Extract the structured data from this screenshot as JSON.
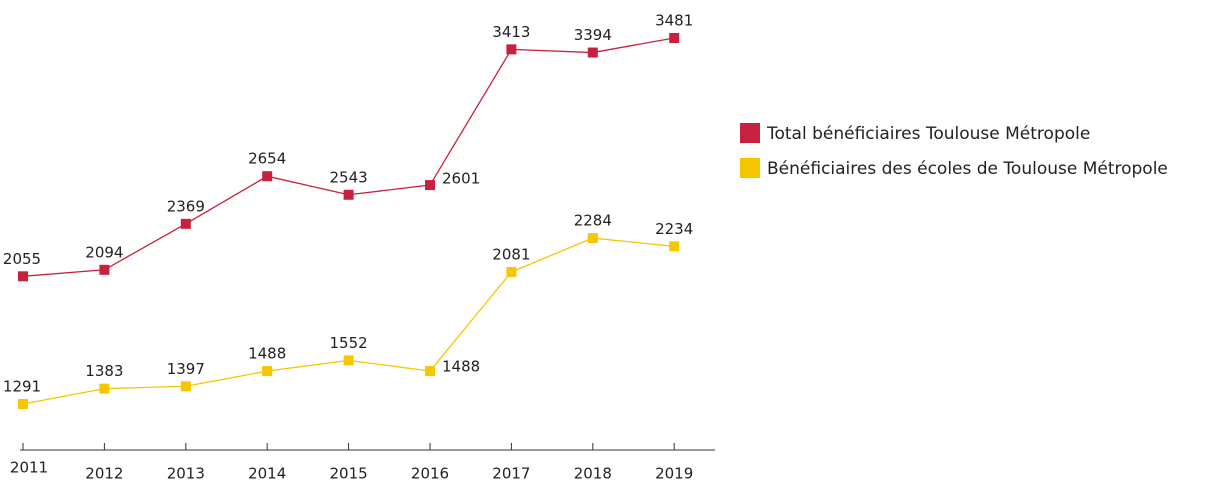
{
  "chart_data": {
    "type": "line",
    "categories": [
      "2011",
      "2012",
      "2013",
      "2014",
      "2015",
      "2016",
      "2017",
      "2018",
      "2019"
    ],
    "series": [
      {
        "name": "Total bénéficiaires Toulouse Métropole",
        "color": "#c8203f",
        "values": [
          2055,
          2094,
          2369,
          2654,
          2543,
          2601,
          3413,
          3394,
          3481
        ]
      },
      {
        "name": "Bénéficiaires des écoles de Toulouse Métropole",
        "color": "#f7c600",
        "values": [
          1291,
          1383,
          1397,
          1488,
          1552,
          1488,
          2081,
          2284,
          2234
        ]
      }
    ],
    "legend": "right"
  }
}
